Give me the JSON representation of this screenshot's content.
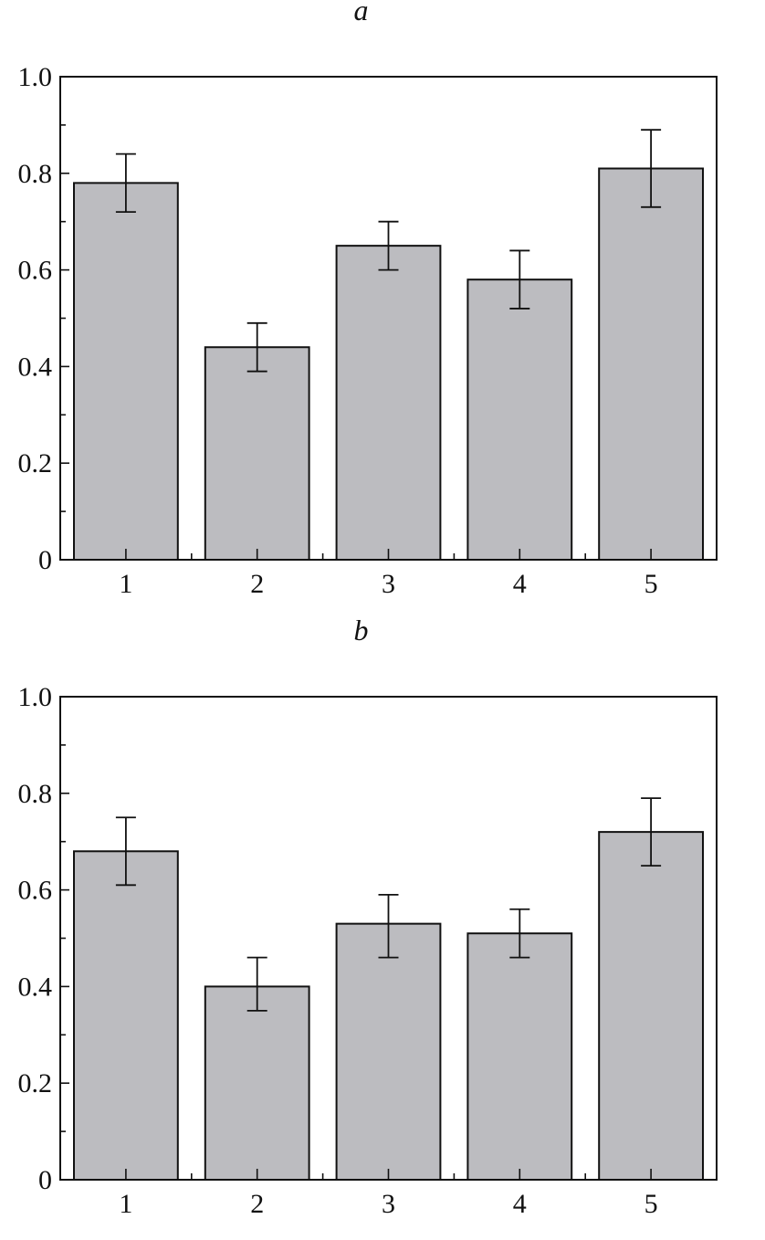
{
  "colors": {
    "bar_fill": "#bcbcc0",
    "bar_stroke": "#111111",
    "axis": "#111111"
  },
  "chart_data": [
    {
      "type": "bar",
      "panel_label": "a",
      "categories": [
        "1",
        "2",
        "3",
        "4",
        "5"
      ],
      "values": [
        0.78,
        0.44,
        0.65,
        0.58,
        0.81
      ],
      "error_low": [
        0.72,
        0.39,
        0.6,
        0.52,
        0.73
      ],
      "error_high": [
        0.84,
        0.49,
        0.7,
        0.64,
        0.89
      ],
      "ylim": [
        0,
        1.0
      ],
      "yticks": [
        "0",
        "0.2",
        "0.4",
        "0.6",
        "0.8",
        "1.0"
      ],
      "ytick_values": [
        0,
        0.2,
        0.4,
        0.6,
        0.8,
        1.0
      ],
      "xlabel": "",
      "ylabel": "",
      "grid": false,
      "legend": "none"
    },
    {
      "type": "bar",
      "panel_label": "b",
      "categories": [
        "1",
        "2",
        "3",
        "4",
        "5"
      ],
      "values": [
        0.68,
        0.4,
        0.53,
        0.51,
        0.72
      ],
      "error_low": [
        0.61,
        0.35,
        0.46,
        0.46,
        0.65
      ],
      "error_high": [
        0.75,
        0.46,
        0.59,
        0.56,
        0.79
      ],
      "ylim": [
        0,
        1.0
      ],
      "yticks": [
        "0",
        "0.2",
        "0.4",
        "0.6",
        "0.8",
        "1.0"
      ],
      "ytick_values": [
        0,
        0.2,
        0.4,
        0.6,
        0.8,
        1.0
      ],
      "xlabel": "",
      "ylabel": "",
      "grid": false,
      "legend": "none"
    }
  ]
}
